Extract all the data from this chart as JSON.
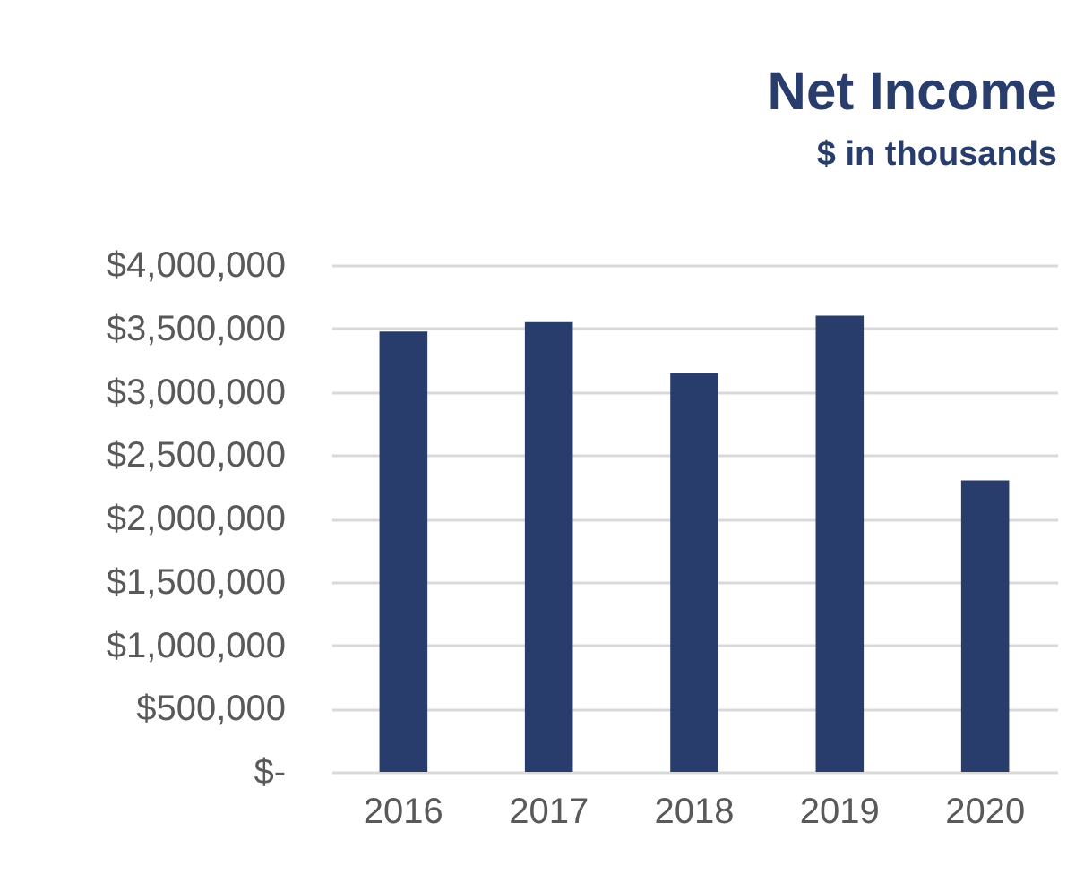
{
  "chart_data": {
    "type": "bar",
    "title": "Net Income",
    "subtitle": "$ in thousands",
    "categories": [
      "2016",
      "2017",
      "2018",
      "2019",
      "2020"
    ],
    "values": [
      3475000,
      3550000,
      3150000,
      3600000,
      2300000
    ],
    "color": "#283d6b",
    "ylim": [
      0,
      4000000
    ],
    "yticks": [
      {
        "value": 0,
        "label": "$-"
      },
      {
        "value": 500000,
        "label": "$500,000"
      },
      {
        "value": 1000000,
        "label": "$1,000,000"
      },
      {
        "value": 1500000,
        "label": "$1,500,000"
      },
      {
        "value": 2000000,
        "label": "$2,000,000"
      },
      {
        "value": 2500000,
        "label": "$2,500,000"
      },
      {
        "value": 3000000,
        "label": "$3,000,000"
      },
      {
        "value": 3500000,
        "label": "$3,500,000"
      },
      {
        "value": 4000000,
        "label": "$4,000,000"
      }
    ],
    "grid": "y"
  }
}
